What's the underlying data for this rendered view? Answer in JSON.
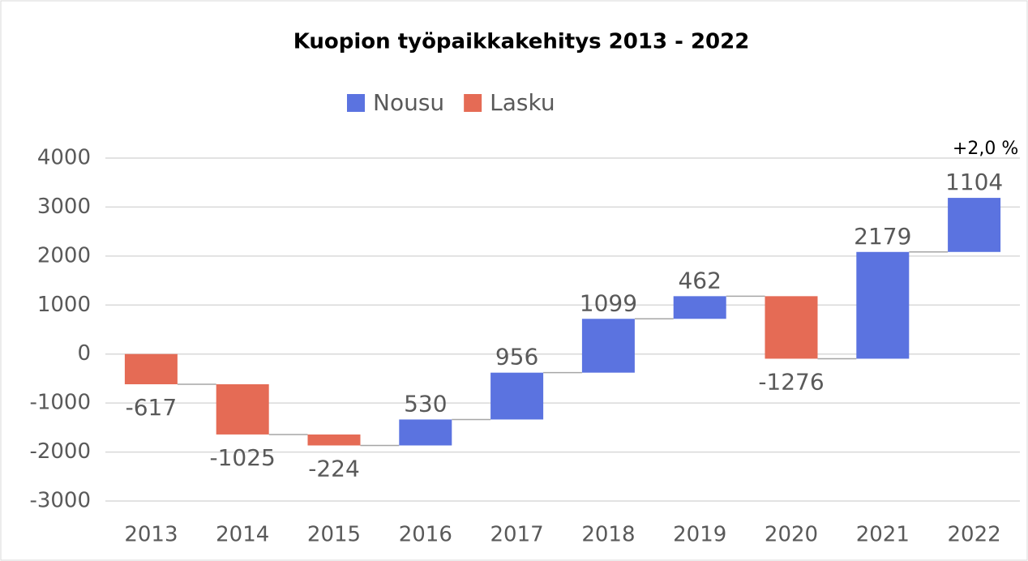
{
  "chart_data": {
    "type": "waterfall",
    "title": "Kuopion työpaikkakehitys 2013 - 2022",
    "categories": [
      "2013",
      "2014",
      "2015",
      "2016",
      "2017",
      "2018",
      "2019",
      "2020",
      "2021",
      "2022"
    ],
    "series": [
      {
        "name": "Nousu",
        "color": "#5b73e0",
        "values": [
          null,
          null,
          null,
          530,
          956,
          1099,
          462,
          null,
          2179,
          1104
        ]
      },
      {
        "name": "Lasku",
        "color": "#e56b55",
        "values": [
          -617,
          -1025,
          -224,
          null,
          null,
          null,
          null,
          -1276,
          null,
          null
        ]
      }
    ],
    "ylim": [
      -3000,
      4000
    ],
    "yticks": [
      -3000,
      -2000,
      -1000,
      0,
      1000,
      2000,
      3000,
      4000
    ],
    "grid": true,
    "annotation": "+2,0 %"
  }
}
